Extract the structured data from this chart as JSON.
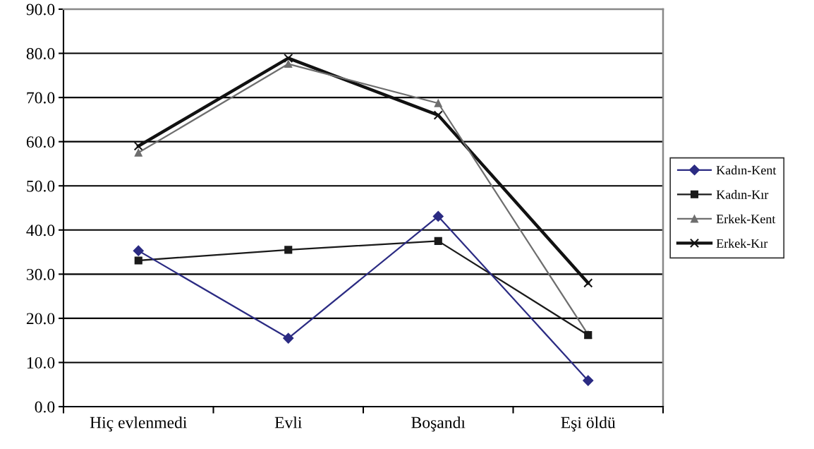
{
  "chart_data": {
    "type": "line",
    "categories": [
      "Hiç evlenmedi",
      "Evli",
      "Boşandı",
      "Eşi öldü"
    ],
    "series": [
      {
        "name": "Kadın-Kent",
        "color": "#2b2b83",
        "marker": "diamond",
        "values": [
          35.3,
          15.5,
          43.1,
          5.9
        ]
      },
      {
        "name": "Kadın-Kır",
        "color": "#1a1a1a",
        "marker": "square",
        "values": [
          33.1,
          35.5,
          37.5,
          16.2
        ]
      },
      {
        "name": "Erkek-Kent",
        "color": "#6e6e6e",
        "marker": "triangle",
        "values": [
          57.5,
          77.6,
          68.7,
          16.3
        ]
      },
      {
        "name": "Erkek-Kır",
        "color": "#111111",
        "marker": "cross",
        "values": [
          59.0,
          78.9,
          66.0,
          28.0
        ]
      }
    ],
    "ylim": [
      0,
      90
    ],
    "yticks": [
      {
        "value": 0,
        "label": "0.0"
      },
      {
        "value": 10,
        "label": "10.0"
      },
      {
        "value": 20,
        "label": "20.0"
      },
      {
        "value": 30,
        "label": "30.0"
      },
      {
        "value": 40,
        "label": "40.0"
      },
      {
        "value": 50,
        "label": "50.0"
      },
      {
        "value": 60,
        "label": "60.0"
      },
      {
        "value": 70,
        "label": "70.0"
      },
      {
        "value": 80,
        "label": "80.0"
      },
      {
        "value": 90,
        "label": "90.0"
      }
    ],
    "grid": "y",
    "legend": "right",
    "line_style": "solid"
  }
}
